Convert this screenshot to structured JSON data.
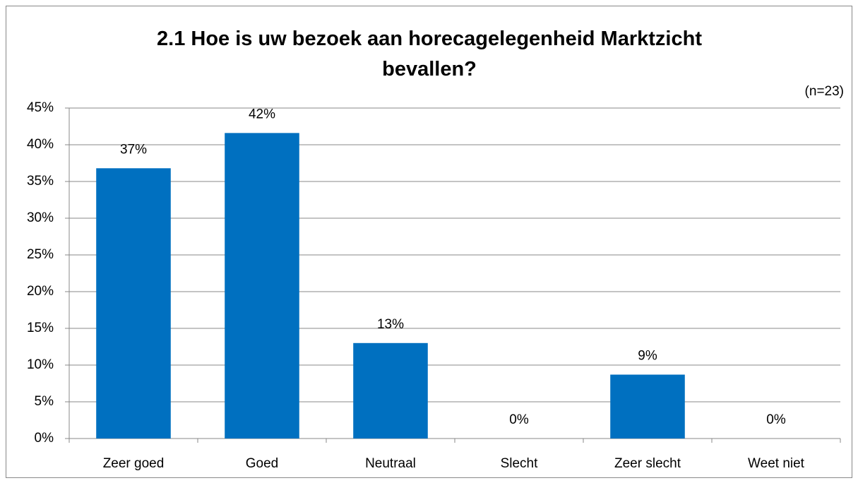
{
  "chart_data": {
    "type": "bar",
    "title": "2.1 Hoe is uw bezoek aan horecagelegenheid Marktzicht bevallen?",
    "subtitle": "(n=23)",
    "categories": [
      "Zeer goed",
      "Goed",
      "Neutraal",
      "Slecht",
      "Zeer slecht",
      "Weet niet"
    ],
    "values": [
      36.8,
      41.6,
      13,
      0,
      8.7,
      0
    ],
    "value_labels": [
      "37%",
      "42%",
      "13%",
      "0%",
      "9%",
      "0%"
    ],
    "color": "#0070c0",
    "ylim": [
      0,
      45
    ],
    "yticks": [
      {
        "value": 0,
        "label": "0%"
      },
      {
        "value": 5,
        "label": "5%"
      },
      {
        "value": 10,
        "label": "10%"
      },
      {
        "value": 15,
        "label": "15%"
      },
      {
        "value": 20,
        "label": "20%"
      },
      {
        "value": 25,
        "label": "25%"
      },
      {
        "value": 30,
        "label": "30%"
      },
      {
        "value": 35,
        "label": "35%"
      },
      {
        "value": 40,
        "label": "40%"
      },
      {
        "value": 45,
        "label": "45%"
      }
    ],
    "grid": true
  }
}
